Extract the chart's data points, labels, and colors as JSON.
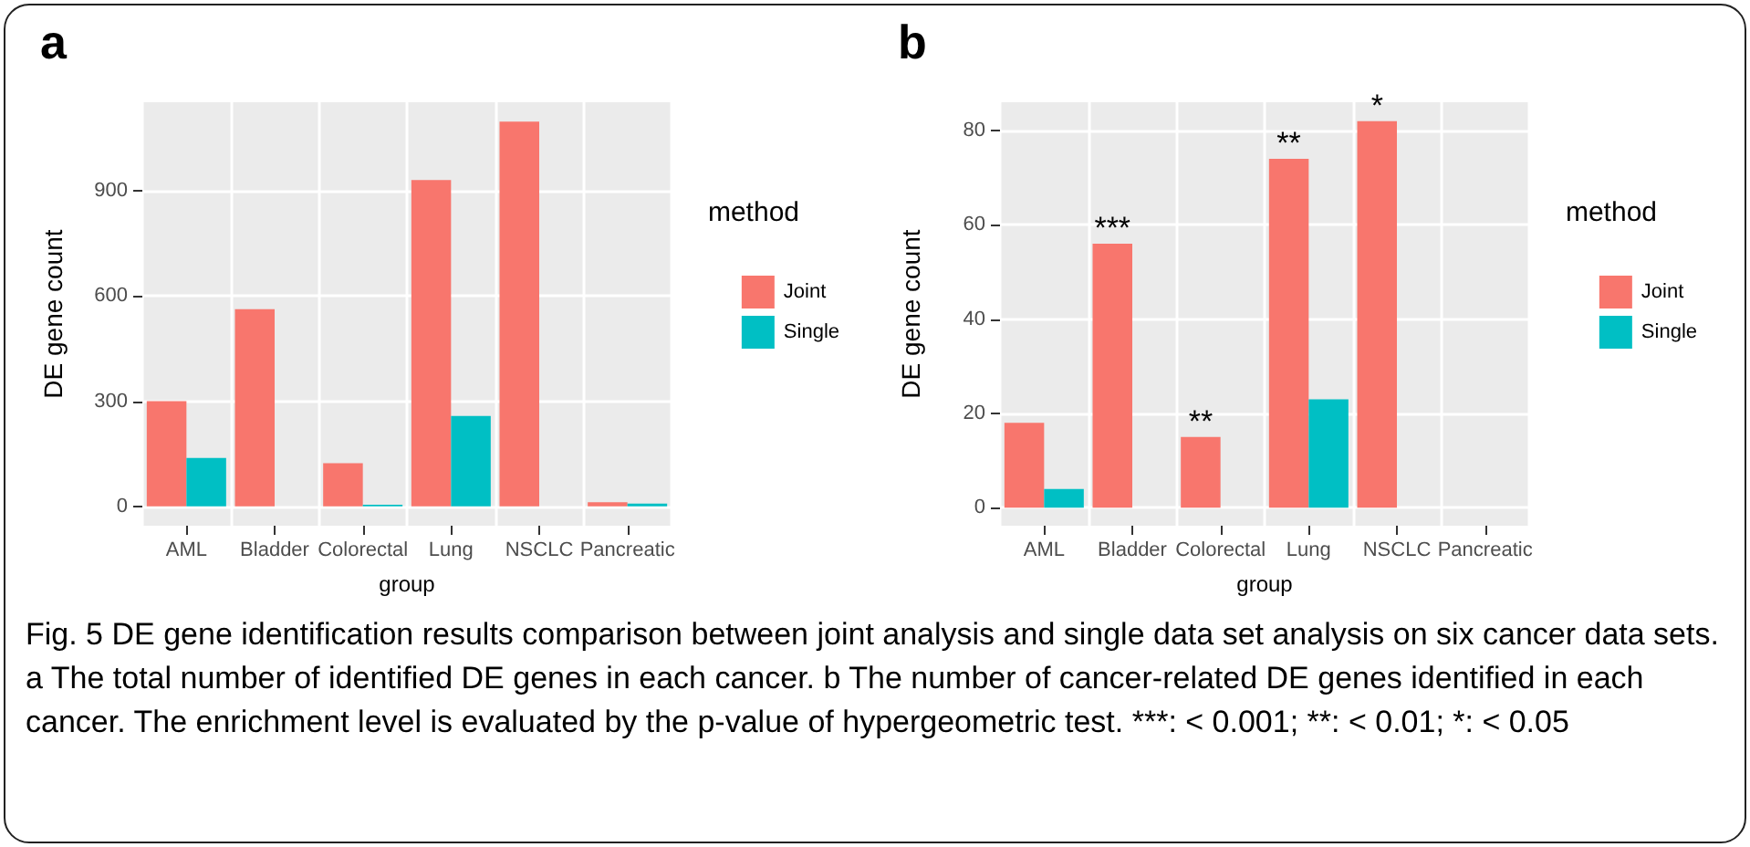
{
  "chart_data": [
    {
      "type": "bar",
      "title": "a",
      "xlabel": "group",
      "ylabel": "DE gene count",
      "legend_title": "method",
      "categories": [
        "AML",
        "Bladder",
        "Colorectal",
        "Lung",
        "NSCLC",
        "Pancreatic"
      ],
      "series": [
        {
          "name": "Joint",
          "color": "#f8766d",
          "values": [
            300,
            562,
            123,
            930,
            1097,
            12
          ]
        },
        {
          "name": "Single",
          "color": "#00bfc4",
          "values": [
            138,
            null,
            5,
            258,
            null,
            8
          ]
        }
      ],
      "ylim": [
        -55,
        1152
      ],
      "yticks": [
        0,
        300,
        600,
        900
      ],
      "grid": true,
      "legend": "right",
      "annotations": [
        "Fig. 5 DE gene identification results comparison between joint analysis and single data set analysis on six cancer data sets. a The total number of identified DE genes in each cancer. b The number of cancer-related DE genes identified in each cancer. The enrichment level is evaluated by the p-value of hypergeometric test. ***: < 0.001; **: < 0.01; *: < 0.05"
      ]
    },
    {
      "type": "bar",
      "title": "b",
      "xlabel": "group",
      "ylabel": "DE gene count",
      "legend_title": "method",
      "categories": [
        "AML",
        "Bladder",
        "Colorectal",
        "Lung",
        "NSCLC",
        "Pancreatic"
      ],
      "series": [
        {
          "name": "Joint",
          "color": "#f8766d",
          "values": [
            18,
            56,
            15,
            74,
            82,
            null
          ]
        },
        {
          "name": "Single",
          "color": "#00bfc4",
          "values": [
            4,
            null,
            null,
            23,
            null,
            null
          ]
        }
      ],
      "ylim": [
        -3.8,
        86
      ],
      "yticks": [
        0,
        20,
        40,
        60,
        80
      ],
      "grid": true,
      "legend": "right",
      "annotations": [
        {
          "text": "***",
          "x": "Bladder",
          "y": 56
        },
        {
          "text": "**",
          "x": "Colorectal",
          "y": 15
        },
        {
          "text": "**",
          "x": "Lung",
          "y": 74
        },
        {
          "text": "*",
          "x": "NSCLC",
          "y": 82
        }
      ]
    }
  ]
}
